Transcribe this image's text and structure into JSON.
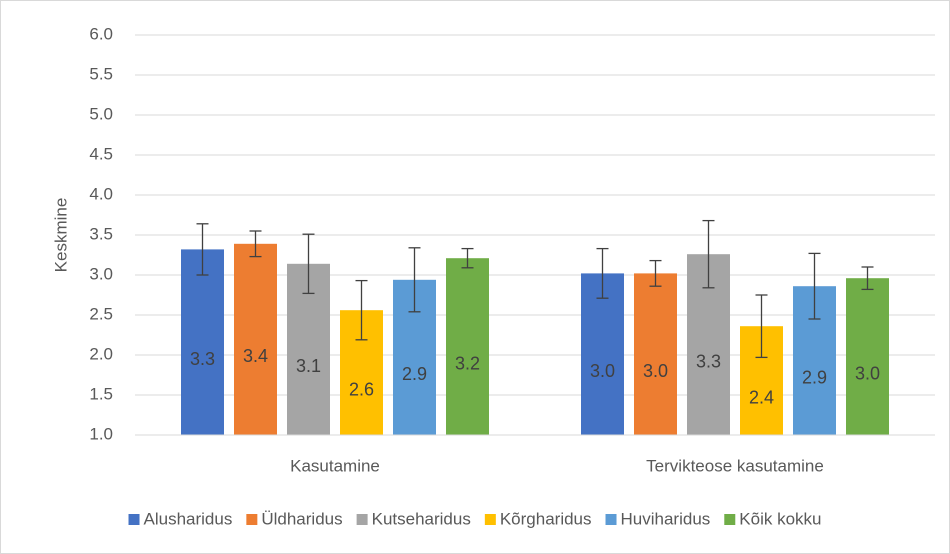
{
  "chart_data": {
    "type": "bar",
    "y_label": "Keskmine",
    "categories": [
      "Kasutamine",
      "Tervikteose kasutamine"
    ],
    "ylim": [
      1,
      6
    ],
    "yticks": [
      {
        "value": 1,
        "label": "1.0"
      },
      {
        "value": 1.5,
        "label": "1.5"
      },
      {
        "value": 2,
        "label": "2.0"
      },
      {
        "value": 2.5,
        "label": "2.5"
      },
      {
        "value": 3,
        "label": "3.0"
      },
      {
        "value": 3.5,
        "label": "3.5"
      },
      {
        "value": 4,
        "label": "4.0"
      },
      {
        "value": 4.5,
        "label": "4.5"
      },
      {
        "value": 5,
        "label": "5.0"
      },
      {
        "value": 5.5,
        "label": "5.5"
      },
      {
        "value": 6,
        "label": "6.0"
      }
    ],
    "grid": true,
    "legend": "bottom",
    "series": [
      {
        "name": "Alusharidus",
        "color": "#4472c4",
        "values": [
          3.32,
          3.02
        ],
        "errors": [
          0.32,
          0.31
        ],
        "value_labels": [
          "3.3",
          "3.0"
        ]
      },
      {
        "name": "Üldharidus",
        "color": "#ed7d31",
        "values": [
          3.39,
          3.02
        ],
        "errors": [
          0.16,
          0.16
        ],
        "value_labels": [
          "3.4",
          "3.0"
        ]
      },
      {
        "name": "Kutseharidus",
        "color": "#a5a5a5",
        "values": [
          3.14,
          3.26
        ],
        "errors": [
          0.37,
          0.42
        ],
        "value_labels": [
          "3.1",
          "3.3"
        ]
      },
      {
        "name": "Kõrgharidus",
        "color": "#ffc000",
        "values": [
          2.56,
          2.36
        ],
        "errors": [
          0.37,
          0.39
        ],
        "value_labels": [
          "2.6",
          "2.4"
        ]
      },
      {
        "name": "Huviharidus",
        "color": "#5b9bd5",
        "values": [
          2.94,
          2.86
        ],
        "errors": [
          0.4,
          0.41
        ],
        "value_labels": [
          "2.9",
          "2.9"
        ]
      },
      {
        "name": "Kõik kokku",
        "color": "#70ad47",
        "values": [
          3.21,
          2.96
        ],
        "errors": [
          0.12,
          0.14
        ],
        "value_labels": [
          "3.2",
          "3.0"
        ]
      }
    ]
  }
}
